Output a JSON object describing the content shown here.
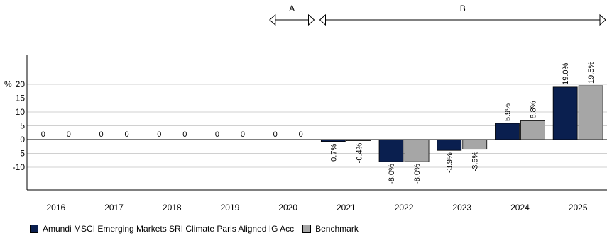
{
  "chart_data": {
    "type": "bar",
    "unit_label": "%",
    "categories": [
      "2016",
      "2017",
      "2018",
      "2019",
      "2020",
      "2021",
      "2022",
      "2023",
      "2024",
      "2025"
    ],
    "series": [
      {
        "name": "Amundi MSCI Emerging Markets SRI Climate Paris Aligned IG Acc",
        "color": "#0a1f4f",
        "values": [
          0,
          0,
          0,
          0,
          0,
          -0.7,
          -8.0,
          -3.9,
          5.9,
          19.0
        ],
        "labels": [
          "0",
          "0",
          "0",
          "0",
          "0",
          "-0.7%",
          "-8.0%",
          "-3.9%",
          "5.9%",
          "19.0%"
        ]
      },
      {
        "name": "Benchmark",
        "color": "#a6a6a6",
        "values": [
          0,
          0,
          0,
          0,
          0,
          -0.4,
          -8.0,
          -3.5,
          6.8,
          19.5
        ],
        "labels": [
          "0",
          "0",
          "0",
          "0",
          "0",
          "-0.4%",
          "-8.0%",
          "-3.5%",
          "6.8%",
          "19.5%"
        ]
      }
    ],
    "ylim": [
      -10,
      20
    ],
    "yticks": [
      20,
      15,
      10,
      5,
      0,
      -5,
      -10
    ],
    "grid": true,
    "legend_position": "bottom-left",
    "periods": [
      {
        "label": "A",
        "from": "2020",
        "to": "2020"
      },
      {
        "label": "B",
        "from": "2021",
        "to": "2025"
      }
    ]
  }
}
